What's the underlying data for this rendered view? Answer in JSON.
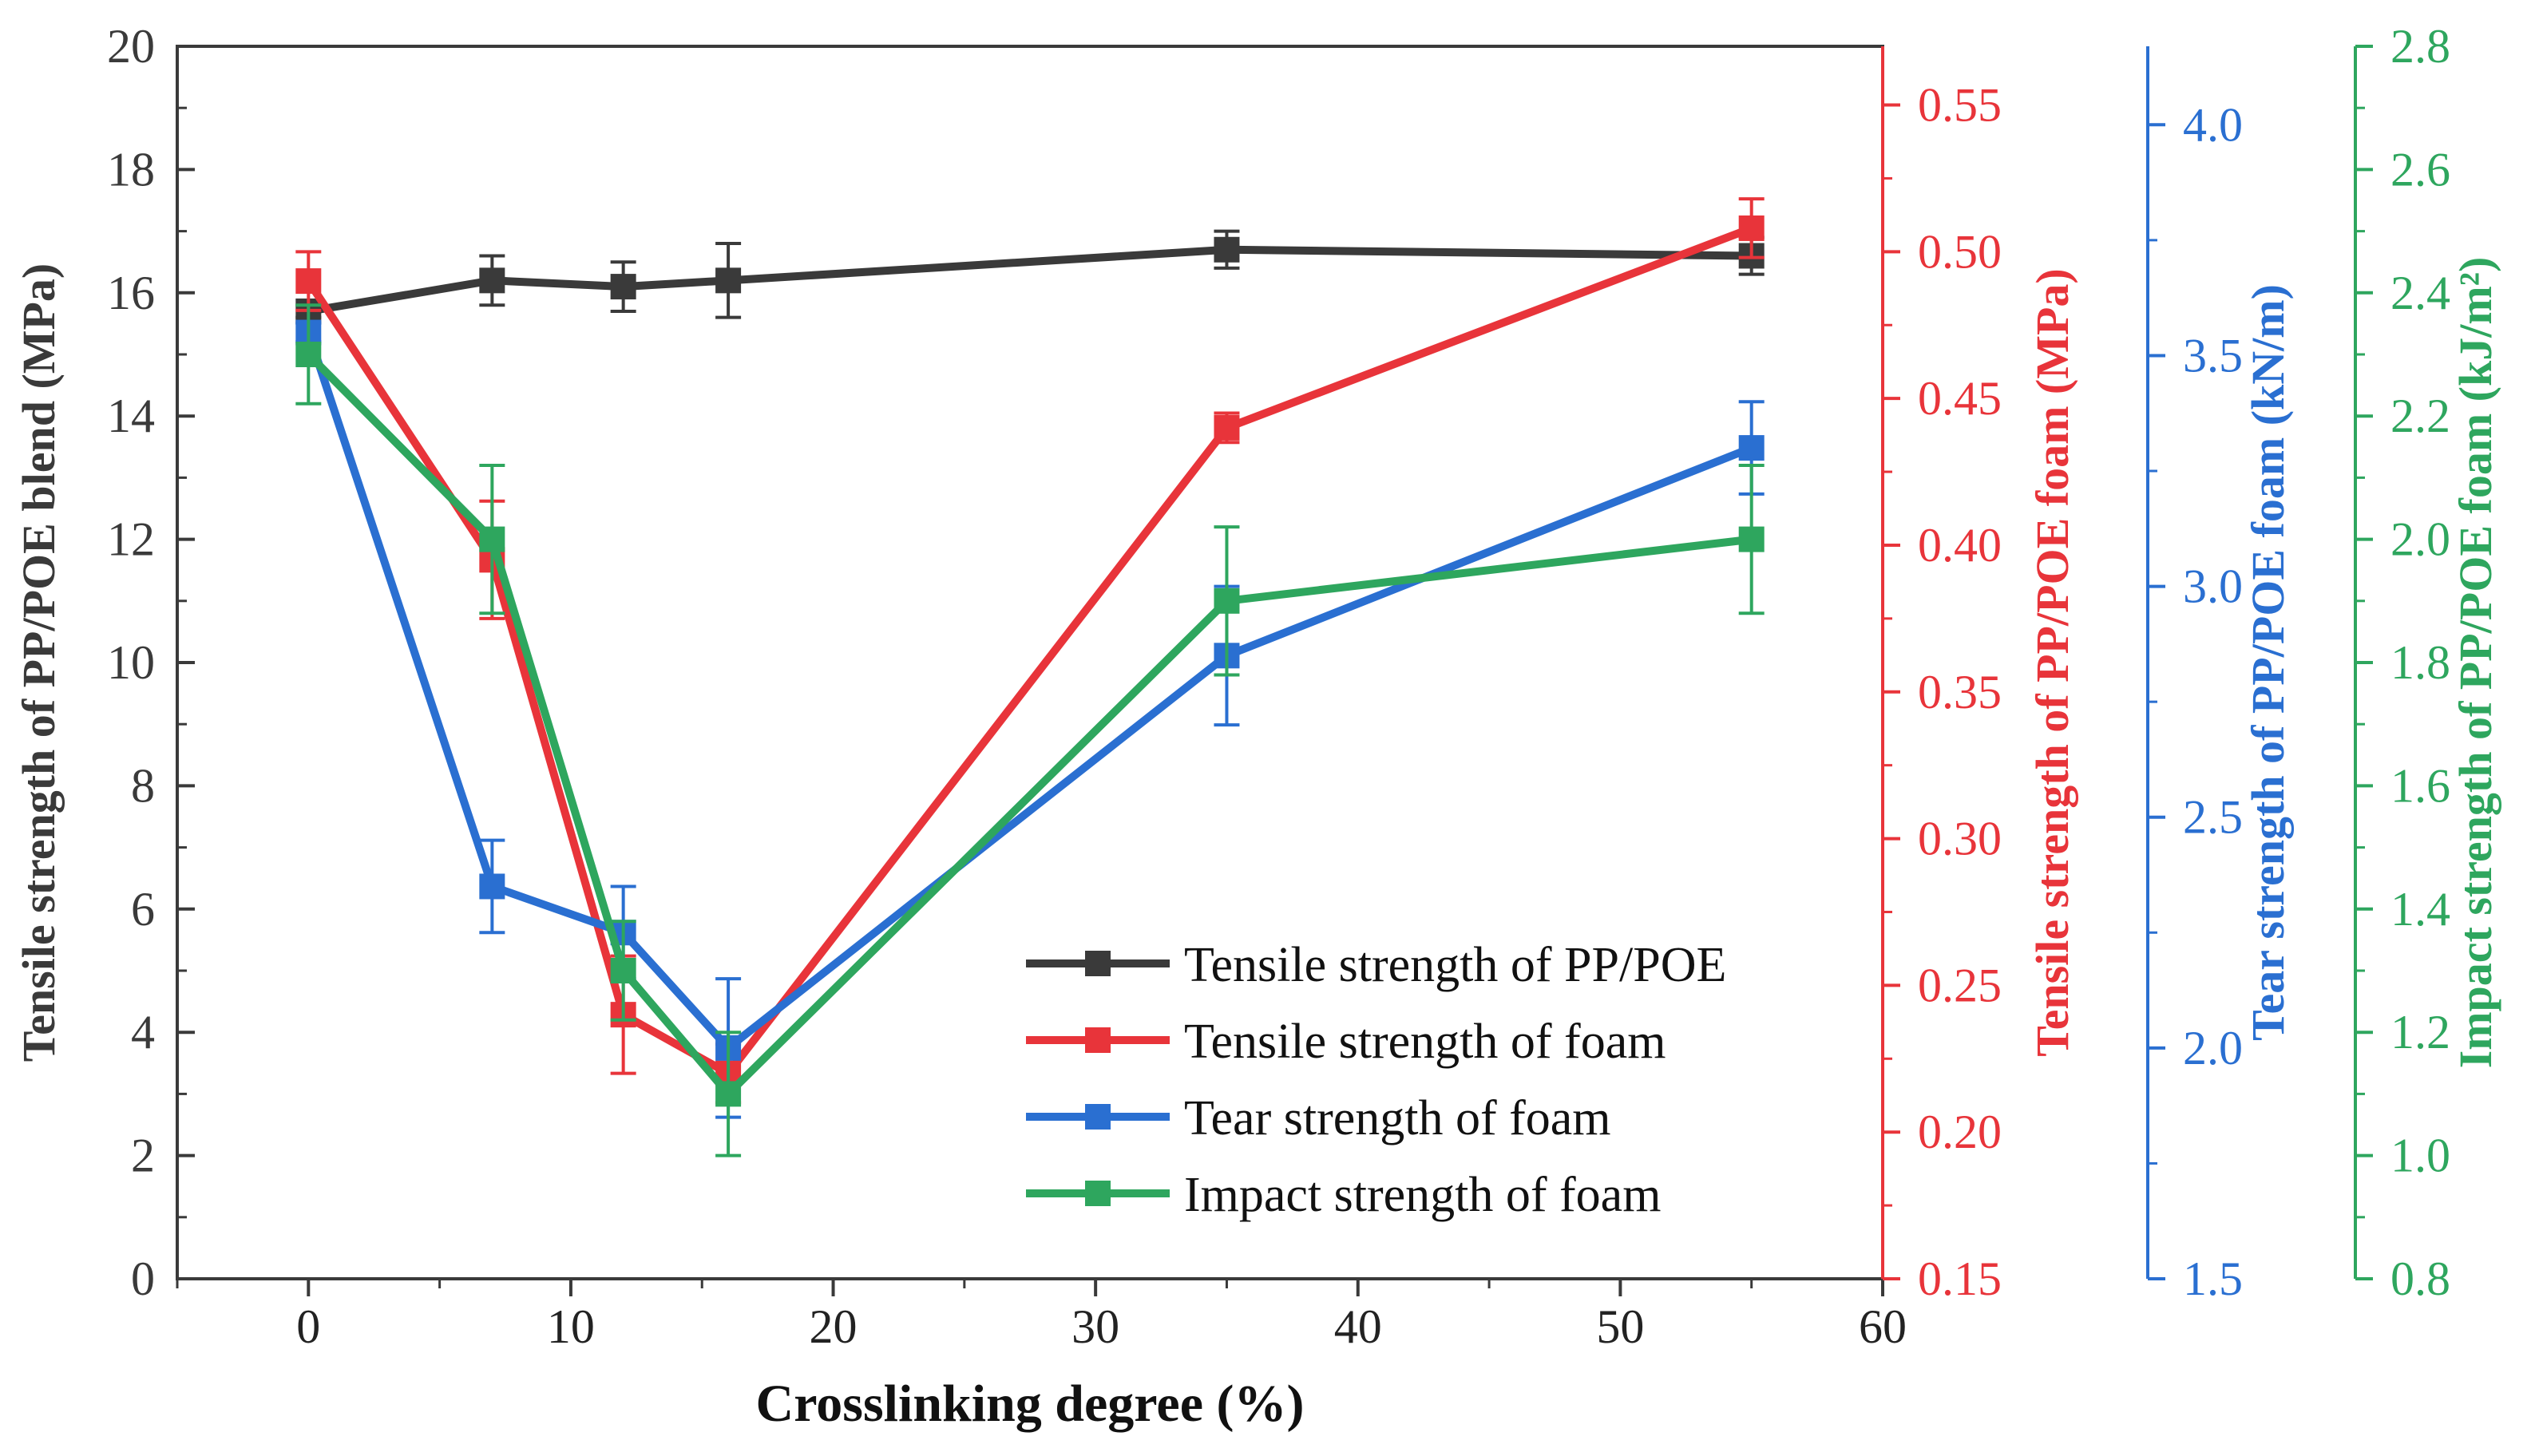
{
  "chart_data": {
    "type": "line",
    "xlabel": "Crosslinking degree (%)",
    "xlim": [
      -5,
      60
    ],
    "x_ticks": [
      0,
      10,
      20,
      30,
      40,
      50,
      60
    ],
    "x": [
      0,
      7,
      12,
      16,
      35,
      55
    ],
    "axes": [
      {
        "id": "left",
        "label": "Tensile strength of PP/POE blend (MPa)",
        "range": [
          0,
          20
        ],
        "ticks": [
          0,
          2,
          4,
          6,
          8,
          10,
          12,
          14,
          16,
          18,
          20
        ],
        "decimals": 0,
        "color": "#3a3a3a"
      },
      {
        "id": "right1",
        "label": "Tensile strength of PP/POE foam (MPa)",
        "range": [
          0.15,
          0.57
        ],
        "ticks": [
          0.15,
          0.2,
          0.25,
          0.3,
          0.35,
          0.4,
          0.45,
          0.5,
          0.55
        ],
        "decimals": 2,
        "color": "#e8343a"
      },
      {
        "id": "right2",
        "label": "Tear strength of PP/POE foam (kN/m)",
        "range": [
          1.5,
          4.17
        ],
        "ticks": [
          1.5,
          2.0,
          2.5,
          3.0,
          3.5,
          4.0
        ],
        "decimals": 1,
        "color": "#2a6fd1"
      },
      {
        "id": "right3",
        "label": "Impact strength of PP/POE foam (kJ/m²)",
        "range": [
          0.8,
          2.8
        ],
        "ticks": [
          0.8,
          1.0,
          1.2,
          1.4,
          1.6,
          1.8,
          2.0,
          2.2,
          2.4,
          2.6,
          2.8
        ],
        "decimals": 1,
        "color": "#2ea65e"
      }
    ],
    "series": [
      {
        "name": "Tensile strength of PP/POE",
        "axis": "left",
        "color": "#3a3a3a",
        "values": [
          15.7,
          16.2,
          16.1,
          16.2,
          16.7,
          16.6
        ],
        "errors": [
          0.1,
          0.4,
          0.4,
          0.6,
          0.3,
          0.3
        ]
      },
      {
        "name": "Tensile strength of foam",
        "axis": "right1",
        "color": "#e8343a",
        "values": [
          0.49,
          0.395,
          0.24,
          0.22,
          0.44,
          0.508
        ],
        "errors": [
          0.01,
          0.02,
          0.02,
          0.01,
          0.005,
          0.01
        ]
      },
      {
        "name": "Tear strength of foam",
        "axis": "right2",
        "color": "#2a6fd1",
        "values": [
          3.55,
          2.35,
          2.25,
          2.0,
          2.85,
          3.3
        ],
        "errors": [
          0.02,
          0.1,
          0.1,
          0.15,
          0.15,
          0.1
        ]
      },
      {
        "name": "Impact strength of foam",
        "axis": "right3",
        "color": "#2ea65e",
        "values": [
          2.3,
          2.0,
          1.3,
          1.1,
          1.9,
          2.0
        ],
        "errors": [
          0.08,
          0.12,
          0.08,
          0.1,
          0.12,
          0.12
        ]
      }
    ],
    "legend_position": "bottom-right"
  }
}
